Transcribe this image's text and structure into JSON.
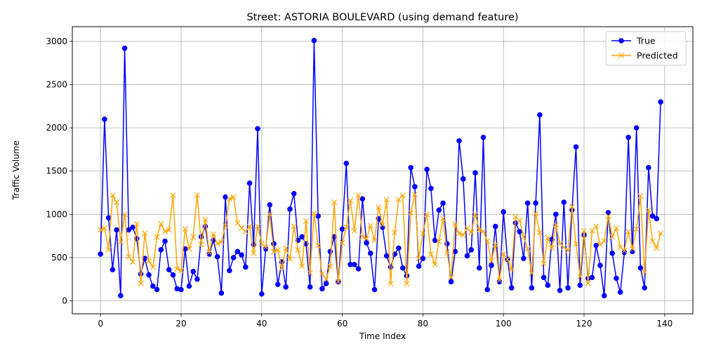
{
  "chart_data": {
    "type": "line",
    "title": "Street: ASTORIA BOULEVARD (using demand feature)",
    "xlabel": "Time Index",
    "ylabel": "Traffic Volume",
    "xlim": [
      -7,
      147
    ],
    "ylim": [
      -150,
      3170
    ],
    "xticks": [
      0,
      20,
      40,
      60,
      80,
      100,
      120,
      140
    ],
    "yticks": [
      0,
      500,
      1000,
      1500,
      2000,
      2500,
      3000
    ],
    "grid": true,
    "legend_position": "top-right",
    "series": [
      {
        "name": "True",
        "color": "#0000ff",
        "marker": "o",
        "values": [
          540,
          2100,
          960,
          360,
          820,
          60,
          2920,
          820,
          850,
          720,
          310,
          490,
          300,
          170,
          130,
          590,
          690,
          360,
          300,
          140,
          130,
          600,
          170,
          340,
          250,
          740,
          860,
          540,
          700,
          510,
          90,
          1200,
          350,
          500,
          570,
          530,
          390,
          1360,
          650,
          1990,
          80,
          600,
          1110,
          660,
          190,
          450,
          160,
          1060,
          1240,
          700,
          740,
          660,
          160,
          3010,
          980,
          140,
          200,
          570,
          740,
          220,
          830,
          1590,
          420,
          420,
          370,
          1180,
          670,
          550,
          130,
          950,
          850,
          520,
          390,
          540,
          610,
          380,
          290,
          1540,
          1320,
          400,
          490,
          1520,
          1300,
          700,
          1050,
          1130,
          660,
          220,
          570,
          1850,
          1410,
          520,
          590,
          1480,
          380,
          1890,
          130,
          410,
          860,
          220,
          1030,
          480,
          150,
          900,
          800,
          490,
          1130,
          150,
          1130,
          2150,
          270,
          180,
          710,
          1000,
          120,
          1140,
          150,
          1050,
          1780,
          180,
          760,
          260,
          270,
          640,
          410,
          60,
          1020,
          550,
          260,
          100,
          560,
          1890,
          570,
          2000,
          380,
          150,
          1540,
          980,
          950,
          2300
        ]
      },
      {
        "name": "Predicted",
        "color": "#ffa500",
        "marker": "x",
        "values": [
          820,
          840,
          590,
          1220,
          1140,
          680,
          1000,
          510,
          450,
          890,
          200,
          780,
          460,
          390,
          740,
          890,
          800,
          820,
          1220,
          370,
          350,
          830,
          600,
          740,
          1220,
          650,
          940,
          560,
          770,
          660,
          680,
          870,
          1180,
          1200,
          900,
          840,
          800,
          860,
          550,
          860,
          660,
          620,
          1000,
          570,
          590,
          380,
          610,
          480,
          860,
          590,
          400,
          920,
          320,
          1010,
          640,
          310,
          250,
          400,
          1140,
          220,
          670,
          850,
          1160,
          810,
          1220,
          740,
          720,
          870,
          700,
          1080,
          880,
          1170,
          200,
          790,
          1170,
          1220,
          200,
          1020,
          1230,
          490,
          780,
          1000,
          540,
          420,
          690,
          950,
          560,
          270,
          890,
          780,
          760,
          840,
          790,
          1000,
          820,
          800,
          690,
          460,
          650,
          240,
          540,
          480,
          360,
          970,
          930,
          740,
          600,
          320,
          1010,
          790,
          430,
          730,
          610,
          880,
          660,
          620,
          580,
          1090,
          660,
          280,
          810,
          200,
          810,
          860,
          650,
          690,
          980,
          740,
          840,
          620,
          580,
          800,
          600,
          830,
          1210,
          330,
          1050,
          690,
          610,
          780
        ]
      }
    ]
  }
}
